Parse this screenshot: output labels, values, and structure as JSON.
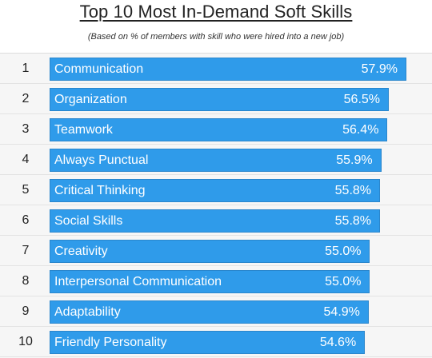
{
  "chart_data": {
    "type": "bar",
    "orientation": "horizontal",
    "title": "Top 10 Most In-Demand Soft Skills",
    "subtitle": "(Based on % of members with skill who were hired into a new job)",
    "ranks": [
      "1",
      "2",
      "3",
      "4",
      "5",
      "6",
      "7",
      "8",
      "9",
      "10"
    ],
    "categories": [
      "Communication",
      "Organization",
      "Teamwork",
      "Always Punctual",
      "Critical Thinking",
      "Social Skills",
      "Creativity",
      "Interpersonal Communication",
      "Adaptability",
      "Friendly Personality"
    ],
    "values": [
      57.9,
      56.5,
      56.4,
      55.9,
      55.8,
      55.8,
      55.0,
      55.0,
      54.9,
      54.6
    ],
    "value_labels": [
      "57.9%",
      "56.5%",
      "56.4%",
      "55.9%",
      "55.8%",
      "55.8%",
      "55.0%",
      "55.0%",
      "54.9%",
      "54.6%"
    ],
    "unit": "%",
    "bar_color": "#2f9bea",
    "grid": false,
    "legend": "none"
  }
}
